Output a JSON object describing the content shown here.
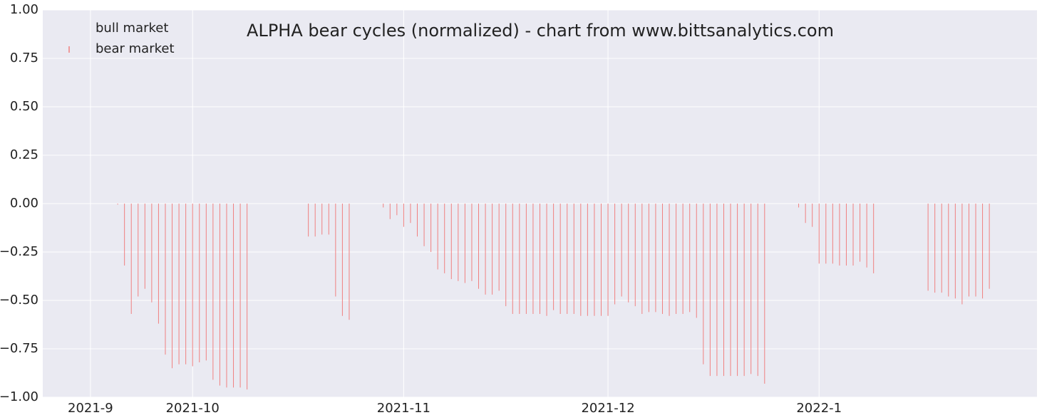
{
  "chart_data": {
    "type": "bar",
    "title": "ALPHA bear cycles (normalized)  - chart from www.bittsanalytics.com",
    "xlim": [
      "2021-09-09",
      "2022-02-02"
    ],
    "xticks": [
      {
        "value": "2021-09-16",
        "label": "2021-9"
      },
      {
        "value": "2021-10-01",
        "label": "2021-10"
      },
      {
        "value": "2021-11-01",
        "label": "2021-11"
      },
      {
        "value": "2021-12-01",
        "label": "2021-12"
      },
      {
        "value": "2022-01-01",
        "label": "2022-1"
      }
    ],
    "ylim": [
      -1,
      1
    ],
    "yticks": [
      {
        "value": 1,
        "label": "1.00"
      },
      {
        "value": 0.75,
        "label": "0.75"
      },
      {
        "value": 0.5,
        "label": "0.50"
      },
      {
        "value": 0.25,
        "label": "0.25"
      },
      {
        "value": 0,
        "label": "0.00"
      },
      {
        "value": -0.25,
        "label": "−0.25"
      },
      {
        "value": -0.5,
        "label": "−0.50"
      },
      {
        "value": -0.75,
        "label": "−0.75"
      },
      {
        "value": -1,
        "label": "−1.00"
      }
    ],
    "grid": true,
    "legend": "upper left",
    "series": [
      {
        "name": "bull market",
        "color": "#55a868",
        "x": [],
        "values": []
      },
      {
        "name": "bear market",
        "color": "#f08080",
        "x": [
          "2021-09-20",
          "2021-09-21",
          "2021-09-22",
          "2021-09-23",
          "2021-09-24",
          "2021-09-25",
          "2021-09-26",
          "2021-09-27",
          "2021-09-28",
          "2021-09-29",
          "2021-09-30",
          "2021-10-01",
          "2021-10-02",
          "2021-10-03",
          "2021-10-04",
          "2021-10-05",
          "2021-10-06",
          "2021-10-07",
          "2021-10-08",
          "2021-10-09",
          "2021-10-18",
          "2021-10-19",
          "2021-10-20",
          "2021-10-21",
          "2021-10-22",
          "2021-10-23",
          "2021-10-24",
          "2021-10-29",
          "2021-10-30",
          "2021-10-31",
          "2021-11-01",
          "2021-11-02",
          "2021-11-03",
          "2021-11-04",
          "2021-11-05",
          "2021-11-06",
          "2021-11-07",
          "2021-11-08",
          "2021-11-09",
          "2021-11-10",
          "2021-11-11",
          "2021-11-12",
          "2021-11-13",
          "2021-11-14",
          "2021-11-15",
          "2021-11-16",
          "2021-11-17",
          "2021-11-18",
          "2021-11-19",
          "2021-11-20",
          "2021-11-21",
          "2021-11-22",
          "2021-11-23",
          "2021-11-24",
          "2021-11-25",
          "2021-11-26",
          "2021-11-27",
          "2021-11-28",
          "2021-11-29",
          "2021-11-30",
          "2021-12-01",
          "2021-12-02",
          "2021-12-03",
          "2021-12-04",
          "2021-12-05",
          "2021-12-06",
          "2021-12-07",
          "2021-12-08",
          "2021-12-09",
          "2021-12-10",
          "2021-12-11",
          "2021-12-12",
          "2021-12-13",
          "2021-12-14",
          "2021-12-15",
          "2021-12-16",
          "2021-12-17",
          "2021-12-18",
          "2021-12-19",
          "2021-12-20",
          "2021-12-21",
          "2021-12-22",
          "2021-12-23",
          "2021-12-24",
          "2021-12-29",
          "2021-12-30",
          "2021-12-31",
          "2022-01-01",
          "2022-01-02",
          "2022-01-03",
          "2022-01-04",
          "2022-01-05",
          "2022-01-06",
          "2022-01-07",
          "2022-01-08",
          "2022-01-09",
          "2022-01-17",
          "2022-01-18",
          "2022-01-19",
          "2022-01-20",
          "2022-01-21",
          "2022-01-22",
          "2022-01-23",
          "2022-01-24",
          "2022-01-25",
          "2022-01-26"
        ],
        "values": [
          -0.005,
          -0.32,
          -0.57,
          -0.48,
          -0.44,
          -0.51,
          -0.62,
          -0.78,
          -0.85,
          -0.83,
          -0.83,
          -0.84,
          -0.82,
          -0.81,
          -0.91,
          -0.94,
          -0.95,
          -0.95,
          -0.95,
          -0.96,
          -0.17,
          -0.17,
          -0.16,
          -0.16,
          -0.48,
          -0.58,
          -0.6,
          -0.02,
          -0.08,
          -0.06,
          -0.12,
          -0.1,
          -0.17,
          -0.22,
          -0.25,
          -0.34,
          -0.36,
          -0.39,
          -0.4,
          -0.41,
          -0.4,
          -0.44,
          -0.47,
          -0.47,
          -0.45,
          -0.53,
          -0.57,
          -0.57,
          -0.57,
          -0.57,
          -0.57,
          -0.58,
          -0.55,
          -0.57,
          -0.57,
          -0.57,
          -0.58,
          -0.58,
          -0.58,
          -0.58,
          -0.58,
          -0.52,
          -0.48,
          -0.51,
          -0.53,
          -0.57,
          -0.56,
          -0.56,
          -0.57,
          -0.58,
          -0.57,
          -0.57,
          -0.56,
          -0.59,
          -0.83,
          -0.89,
          -0.89,
          -0.89,
          -0.89,
          -0.89,
          -0.89,
          -0.88,
          -0.89,
          -0.93,
          -0.02,
          -0.1,
          -0.12,
          -0.31,
          -0.31,
          -0.31,
          -0.32,
          -0.32,
          -0.32,
          -0.3,
          -0.33,
          -0.36,
          -0.45,
          -0.46,
          -0.46,
          -0.48,
          -0.49,
          -0.52,
          -0.48,
          -0.48,
          -0.49,
          -0.44
        ]
      }
    ]
  }
}
